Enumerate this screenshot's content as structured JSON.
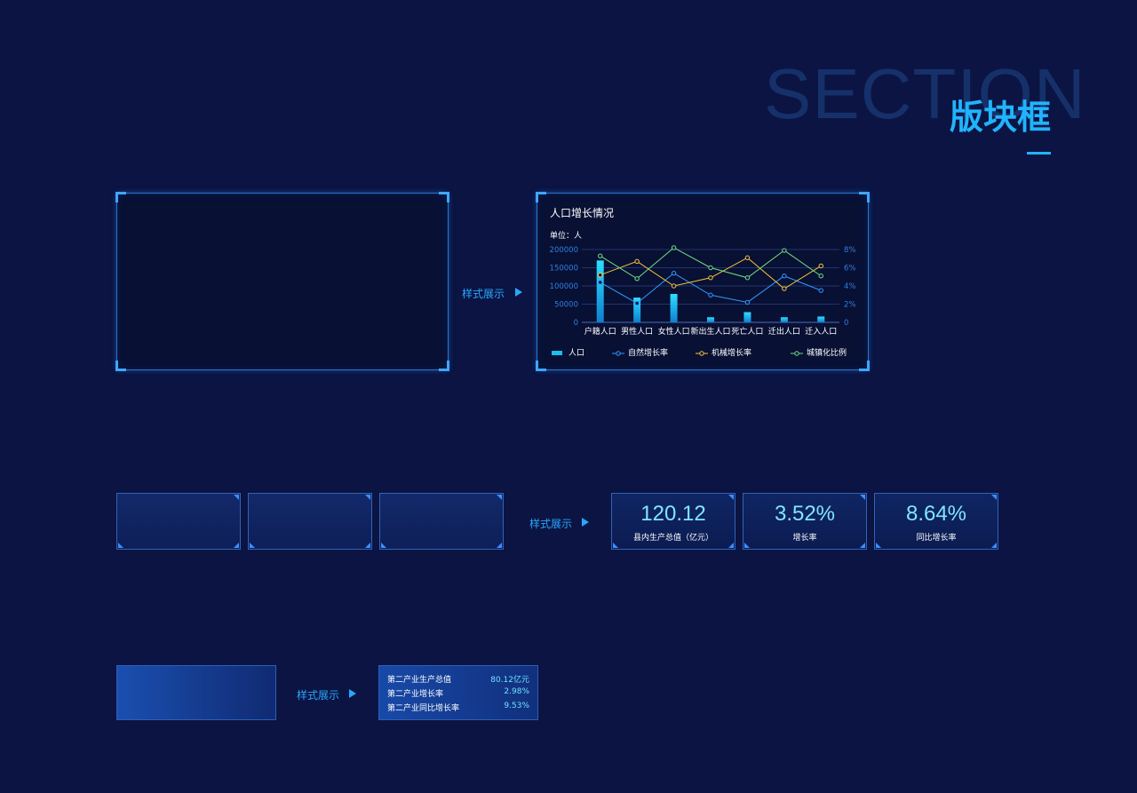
{
  "header": {
    "bg_word": "SECTION",
    "title": "版块框"
  },
  "style_label": "样式展示",
  "chart": {
    "title": "人口增长情况",
    "unit": "单位：人"
  },
  "chart_data": {
    "type": "bar",
    "categories": [
      "户籍人口",
      "男性人口",
      "女性人口",
      "新出生人口",
      "死亡人口",
      "迁出人口",
      "迁入人口"
    ],
    "left_ticks": [
      "200000",
      "150000",
      "100000",
      "50000",
      "0"
    ],
    "right_ticks": [
      "8%",
      "6%",
      "4%",
      "2%",
      "0"
    ],
    "ylim_left": [
      0,
      200000
    ],
    "ylim_right": [
      0,
      8
    ],
    "series": [
      {
        "name": "人口",
        "type": "bar",
        "axis": "left",
        "color": "#18c0f0",
        "values": [
          170000,
          68000,
          78000,
          14000,
          28000,
          14000,
          16000
        ]
      },
      {
        "name": "自然增长率",
        "type": "line",
        "axis": "right",
        "color": "#2f9bff",
        "values": [
          4.4,
          2.1,
          5.4,
          3.0,
          2.2,
          5.1,
          3.5
        ]
      },
      {
        "name": "机械增长率",
        "type": "line",
        "axis": "right",
        "color": "#f5c536",
        "values": [
          5.2,
          6.7,
          4.0,
          4.9,
          7.1,
          3.7,
          6.2
        ]
      },
      {
        "name": "城镇化比例",
        "type": "line",
        "axis": "right",
        "color": "#6fe07a",
        "values": [
          7.3,
          4.8,
          8.2,
          6.0,
          4.9,
          7.9,
          5.1
        ]
      }
    ]
  },
  "stat_cards": [
    {
      "value": "120.12",
      "label": "县内生产总值（亿元）"
    },
    {
      "value": "3.52%",
      "label": "增长率"
    },
    {
      "value": "8.64%",
      "label": "同比增长率"
    }
  ],
  "table_rows": [
    {
      "key": "第二产业生产总值",
      "value": "80.12亿元"
    },
    {
      "key": "第二产业增长率",
      "value": "2.98%"
    },
    {
      "key": "第二产业同比增长率",
      "value": "9.53%"
    }
  ]
}
